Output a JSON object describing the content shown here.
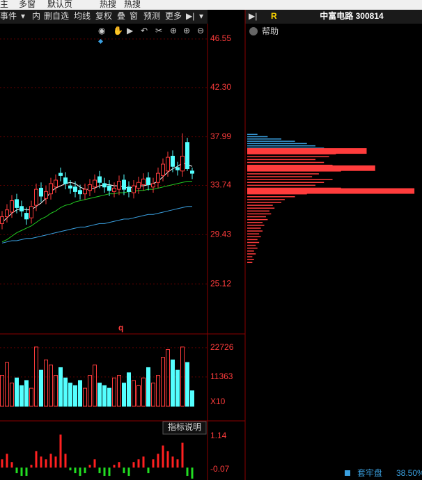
{
  "menu": [
    "主",
    "多窗",
    "默认页",
    "热搜",
    "热搜"
  ],
  "toolbar": [
    "事件",
    "内",
    "删自选",
    "均线",
    "复权",
    "叠",
    "窗",
    "预测",
    "更多"
  ],
  "quote": {
    "flag": "R",
    "name": "中富电路 300814",
    "help": "帮助"
  },
  "chart_data": [
    {
      "type": "candlestick",
      "marker": "q",
      "up_color": "#ff3c3c",
      "down_color": "#54ffff",
      "ylim": [
        20.87,
        47.89
      ],
      "yticks": [
        46.55,
        {
          "value": 42.3,
          "label": "42.30"
        },
        37.99,
        33.74,
        29.43,
        25.12
      ],
      "open": [
        30.4,
        31.0,
        31.4,
        32.5,
        31.9,
        31.3,
        30.9,
        32.0,
        33.5,
        32.6,
        33.0,
        33.6,
        34.8,
        34.4,
        33.7,
        33.6,
        33.3,
        33.0,
        33.3,
        33.6,
        34.5,
        33.9,
        33.7,
        33.2,
        33.4,
        34.2,
        33.6,
        33.1,
        33.5,
        33.8,
        34.4,
        33.6,
        34.0,
        34.6,
        35.0,
        36.3,
        35.3,
        35.0,
        37.5,
        35.0
      ],
      "high": [
        31.5,
        32.1,
        32.9,
        33.0,
        32.4,
        31.8,
        32.4,
        33.9,
        34.0,
        33.7,
        34.4,
        34.7,
        35.3,
        34.9,
        34.2,
        34.1,
        33.8,
        33.9,
        34.3,
        34.7,
        35.0,
        34.4,
        34.2,
        34.0,
        34.6,
        34.7,
        34.1,
        34.2,
        34.5,
        34.8,
        34.9,
        34.4,
        35.3,
        36.1,
        36.7,
        36.8,
        35.8,
        38.3,
        37.9,
        35.3
      ],
      "low": [
        29.9,
        30.5,
        30.9,
        31.3,
        31.0,
        30.3,
        30.4,
        31.5,
        32.3,
        32.1,
        32.5,
        33.1,
        34.1,
        33.4,
        33.0,
        32.7,
        32.5,
        32.5,
        32.8,
        33.1,
        33.5,
        33.1,
        32.8,
        32.7,
        32.9,
        32.9,
        32.7,
        32.6,
        33.0,
        33.3,
        33.3,
        33.1,
        33.5,
        34.1,
        34.5,
        34.9,
        34.6,
        34.5,
        35.0,
        34.3
      ],
      "close": [
        31.0,
        31.6,
        32.4,
        31.8,
        31.5,
        30.8,
        31.9,
        33.4,
        32.8,
        33.2,
        33.9,
        34.2,
        34.6,
        33.9,
        33.5,
        33.2,
        33.0,
        33.4,
        33.8,
        34.2,
        34.0,
        33.6,
        33.3,
        33.5,
        34.1,
        33.4,
        33.2,
        33.7,
        34.0,
        34.3,
        33.8,
        33.9,
        34.8,
        35.6,
        36.2,
        35.4,
        35.1,
        36.3,
        35.2,
        34.8
      ],
      "series": [
        {
          "color": "#ffffff",
          "values": [
            30.5,
            30.9,
            31.3,
            31.6,
            31.7,
            31.6,
            31.6,
            31.9,
            32.2,
            32.6,
            33.2,
            33.5,
            33.7,
            33.9,
            34.0,
            33.9,
            33.6,
            33.4,
            33.4,
            33.5,
            33.7,
            33.8,
            33.8,
            33.7,
            33.7,
            33.6,
            33.5,
            33.6,
            33.7,
            33.7,
            33.8,
            33.9,
            34.1,
            34.5,
            34.9,
            35.2,
            35.4,
            35.7,
            35.6,
            35.4
          ]
        },
        {
          "color": "#22cc22",
          "values": [
            28.8,
            29.0,
            29.3,
            29.6,
            29.8,
            30.0,
            30.2,
            30.5,
            30.8,
            31.0,
            31.3,
            31.5,
            31.8,
            32.0,
            32.1,
            32.3,
            32.4,
            32.5,
            32.6,
            32.7,
            32.8,
            32.9,
            33.0,
            33.0,
            33.1,
            33.1,
            33.2,
            33.2,
            33.3,
            33.3,
            33.4,
            33.4,
            33.5,
            33.6,
            33.7,
            33.8,
            33.9,
            34.0,
            34.1,
            34.1
          ]
        },
        {
          "color": "#3aa0e0",
          "values": [
            28.7,
            28.8,
            28.9,
            28.9,
            29.0,
            29.1,
            29.1,
            29.2,
            29.3,
            29.4,
            29.5,
            29.6,
            29.7,
            29.8,
            29.9,
            30.0,
            30.1,
            30.1,
            30.2,
            30.3,
            30.4,
            30.4,
            30.5,
            30.6,
            30.7,
            30.8,
            30.8,
            30.9,
            31.0,
            31.1,
            31.2,
            31.2,
            31.3,
            31.4,
            31.5,
            31.6,
            31.7,
            31.8,
            31.9,
            31.9
          ]
        }
      ]
    },
    {
      "type": "volume",
      "unit": "X10",
      "ylim": [
        0,
        27000
      ],
      "yticks": [
        22726,
        11363
      ],
      "values": [
        12000,
        17000,
        9000,
        11000,
        8000,
        10000,
        7000,
        23000,
        14000,
        18000,
        16000,
        12000,
        15000,
        11000,
        9000,
        8000,
        10000,
        7000,
        12000,
        16000,
        9000,
        8000,
        7000,
        11000,
        12000,
        9000,
        13000,
        10000,
        8000,
        11000,
        15000,
        9000,
        12000,
        19000,
        22000,
        18000,
        14000,
        23000,
        17000,
        6000
      ]
    },
    {
      "type": "indicator",
      "button": "指标说明",
      "up_color": "#ff2020",
      "down_color": "#22dd22",
      "ylim": [
        -0.45,
        1.67
      ],
      "yticks": [
        1.14,
        -0.07
      ],
      "values": [
        0.3,
        0.5,
        0.2,
        -0.2,
        -0.3,
        -0.3,
        0.1,
        0.6,
        0.4,
        0.3,
        0.5,
        0.4,
        1.2,
        0.5,
        -0.1,
        -0.2,
        -0.3,
        -0.2,
        0.1,
        0.3,
        -0.2,
        -0.3,
        -0.3,
        0.1,
        0.2,
        -0.2,
        -0.3,
        0.2,
        0.3,
        0.4,
        -0.2,
        0.3,
        0.5,
        0.8,
        0.6,
        0.4,
        0.3,
        0.9,
        -0.3,
        -0.4
      ]
    },
    {
      "type": "chips",
      "xlim": [
        0,
        100
      ],
      "label": "套牢盘",
      "ratio": "38.50%",
      "series": [
        {
          "color": "#3aa0e0",
          "prices": [
            37.0,
            37.2,
            37.4,
            37.6,
            37.8,
            38.0,
            38.2
          ],
          "values": [
            45,
            40,
            35,
            28,
            20,
            12,
            6
          ]
        },
        {
          "color": "#ff3c3c",
          "prices": [
            27.0,
            27.25,
            27.5,
            27.75,
            28.0,
            28.25,
            28.5,
            28.75,
            29.0,
            29.25,
            29.5,
            29.75,
            30.0,
            30.25,
            30.5,
            30.75,
            31.0,
            31.25,
            31.5,
            31.75,
            32.0,
            32.25,
            32.5,
            32.75,
            33.0,
            33.25,
            33.5,
            33.75,
            34.0,
            34.25,
            34.5,
            34.75,
            35.0,
            35.25,
            35.5,
            35.75,
            36.0,
            36.25,
            36.5,
            36.75
          ],
          "values": [
            3,
            4,
            3,
            5,
            4,
            6,
            5,
            7,
            6,
            8,
            7,
            9,
            8,
            10,
            9,
            12,
            11,
            14,
            13,
            16,
            15,
            20,
            22,
            28,
            35,
            98,
            55,
            40,
            45,
            50,
            38,
            42,
            55,
            75,
            50,
            45,
            40,
            48,
            52,
            70
          ]
        }
      ]
    }
  ]
}
